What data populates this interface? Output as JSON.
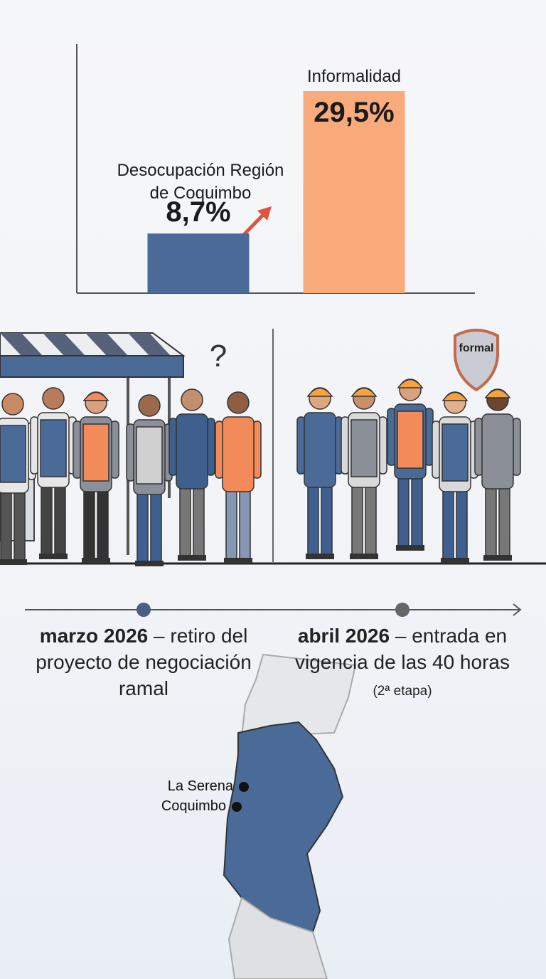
{
  "chart_data": {
    "type": "bar",
    "categories": [
      "Desocupación Región de Coquimbo",
      "Informalidad"
    ],
    "values": [
      8.7,
      29.5
    ],
    "value_labels": [
      "8,7%",
      "29,5%"
    ],
    "colors": [
      "#4a6b97",
      "#f9ab7c"
    ]
  },
  "illustration": {
    "question": "?",
    "badge": "formal"
  },
  "timeline": {
    "events": [
      {
        "date": "marzo 2026",
        "text": "– retiro del proyecto de negociación ramal"
      },
      {
        "date": "abril 2026",
        "text": "– entrada en vigencia de las 40 horas",
        "note": "(2ª etapa)"
      }
    ]
  },
  "map": {
    "places": [
      "La Serena",
      "Coquimbo"
    ]
  }
}
